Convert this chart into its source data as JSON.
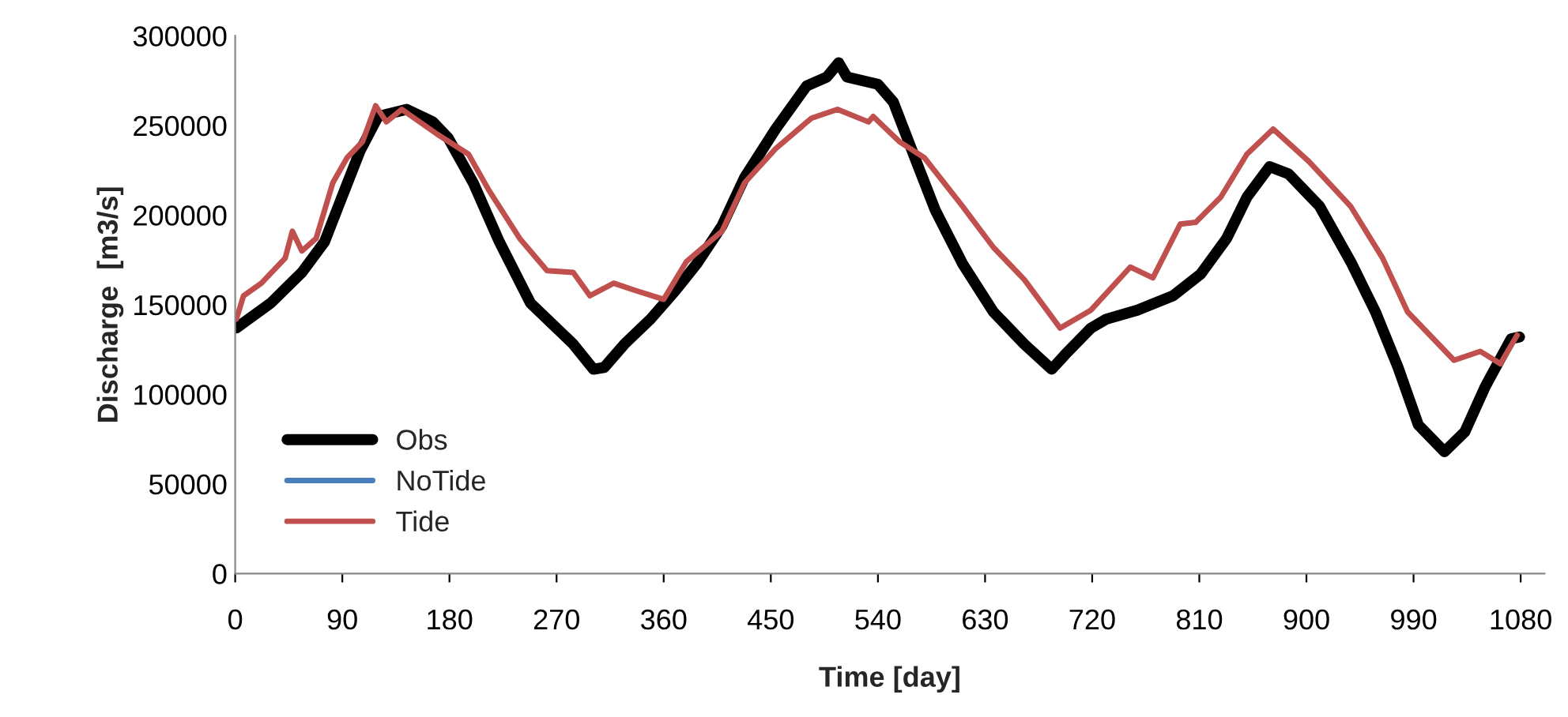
{
  "chart_data": {
    "type": "line",
    "xlabel": "Time [day]",
    "ylabel": "Discharge  [m3/s]",
    "xlim": [
      0,
      1100
    ],
    "xticks": [
      0,
      90,
      180,
      270,
      360,
      450,
      540,
      630,
      720,
      810,
      900,
      990,
      1080
    ],
    "ylim": [
      0,
      300000
    ],
    "yticks": [
      0,
      50000,
      100000,
      150000,
      200000,
      250000,
      300000
    ],
    "grid": false,
    "legend": "bottom left",
    "marker": "none",
    "line_style": "solid",
    "series": [
      {
        "name": "Obs",
        "color": "#000000",
        "x": [
          1,
          30,
          56,
          75,
          92,
          105,
          120,
          144,
          166,
          179,
          200,
          222,
          248,
          284,
          301,
          310,
          327,
          349,
          370,
          388,
          409,
          428,
          454,
          480,
          497,
          507,
          514,
          540,
          553,
          571,
          588,
          611,
          637,
          663,
          686,
          697,
          719,
          732,
          758,
          788,
          811,
          833,
          850,
          869,
          885,
          911,
          938,
          958,
          977,
          994,
          1016,
          1033,
          1050,
          1072,
          1079
        ],
        "values": [
          137000,
          151000,
          168000,
          185000,
          214000,
          236000,
          255000,
          259000,
          252000,
          243000,
          218000,
          185000,
          151000,
          128000,
          114000,
          115000,
          128000,
          142000,
          158000,
          173000,
          194000,
          221000,
          248000,
          272000,
          277000,
          285000,
          277000,
          273000,
          263000,
          232000,
          203000,
          173000,
          146000,
          128000,
          114000,
          122000,
          137000,
          142000,
          147000,
          155000,
          167000,
          187000,
          210000,
          227000,
          223000,
          205000,
          173000,
          146000,
          115000,
          83000,
          68000,
          79000,
          104000,
          131000,
          132000
        ]
      },
      {
        "name": "NoTide",
        "color": "#4a7ebb"
      },
      {
        "name": "Tide",
        "color": "#c0504d",
        "x": [
          1,
          7,
          22,
          42,
          48,
          56,
          68,
          82,
          94,
          107,
          118,
          127,
          140,
          170,
          196,
          213,
          239,
          262,
          284,
          298,
          318,
          336,
          360,
          379,
          409,
          428,
          454,
          484,
          506,
          532,
          536,
          558,
          579,
          611,
          637,
          663,
          693,
          719,
          752,
          771,
          794,
          807,
          828,
          850,
          872,
          902,
          937,
          964,
          985,
          1024,
          1046,
          1063,
          1077
        ],
        "values": [
          142000,
          155000,
          162000,
          176000,
          191000,
          180000,
          187000,
          218000,
          232000,
          241000,
          261000,
          252000,
          259000,
          245000,
          234000,
          214000,
          187000,
          169000,
          168000,
          155000,
          162000,
          158000,
          153000,
          174000,
          191000,
          218000,
          237000,
          254000,
          259000,
          252000,
          255000,
          241000,
          232000,
          205000,
          182000,
          164000,
          137000,
          147000,
          171000,
          165000,
          195000,
          196000,
          210000,
          234000,
          248000,
          230000,
          205000,
          176000,
          146000,
          119000,
          124000,
          117000,
          133000
        ]
      }
    ]
  }
}
